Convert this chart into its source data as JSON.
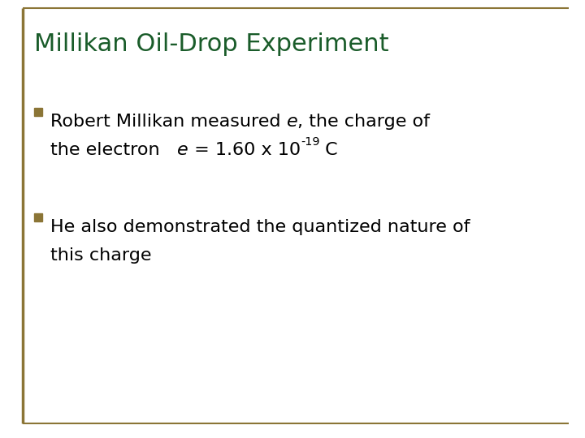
{
  "title": "Millikan Oil-Drop Experiment",
  "title_color": "#1a5c2a",
  "title_fontsize": 22,
  "background_color": "#ffffff",
  "border_color": "#8B7536",
  "bullet_color": "#8B7536",
  "bullet1_text1": "Robert Millikan measured ",
  "bullet1_italic1": "e",
  "bullet1_text2": ", the charge of",
  "bullet1_text3": "the electron   ",
  "bullet1_italic2": "e",
  "bullet1_text4": " = 1.60 x 10",
  "bullet1_super": "-19",
  "bullet1_text5": " C",
  "bullet2_line1": "He also demonstrated the quantized nature of",
  "bullet2_line2": "this charge",
  "text_color": "#000000",
  "text_fontsize": 16
}
